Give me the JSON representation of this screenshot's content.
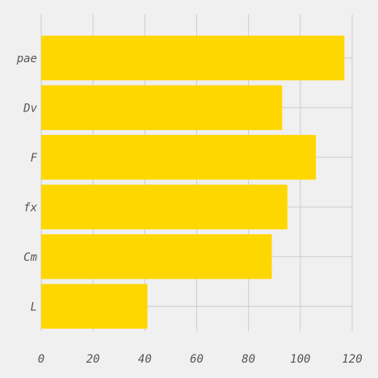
{
  "chart_data": {
    "type": "bar",
    "orientation": "horizontal",
    "categories": [
      "pae",
      "Dv",
      "F",
      "fx",
      "Cm",
      "L"
    ],
    "values": [
      117,
      93,
      106,
      95,
      89,
      41
    ],
    "title": "",
    "xlabel": "",
    "ylabel": "",
    "xlim": [
      0,
      120
    ],
    "xticks": [
      0,
      20,
      40,
      60,
      80,
      100,
      120
    ],
    "grid": true,
    "legend": "none",
    "bar_color": "#ffd700",
    "background_color": "#f0f0f0",
    "grid_color": "#cbcbcb",
    "text_color": "#555555"
  }
}
